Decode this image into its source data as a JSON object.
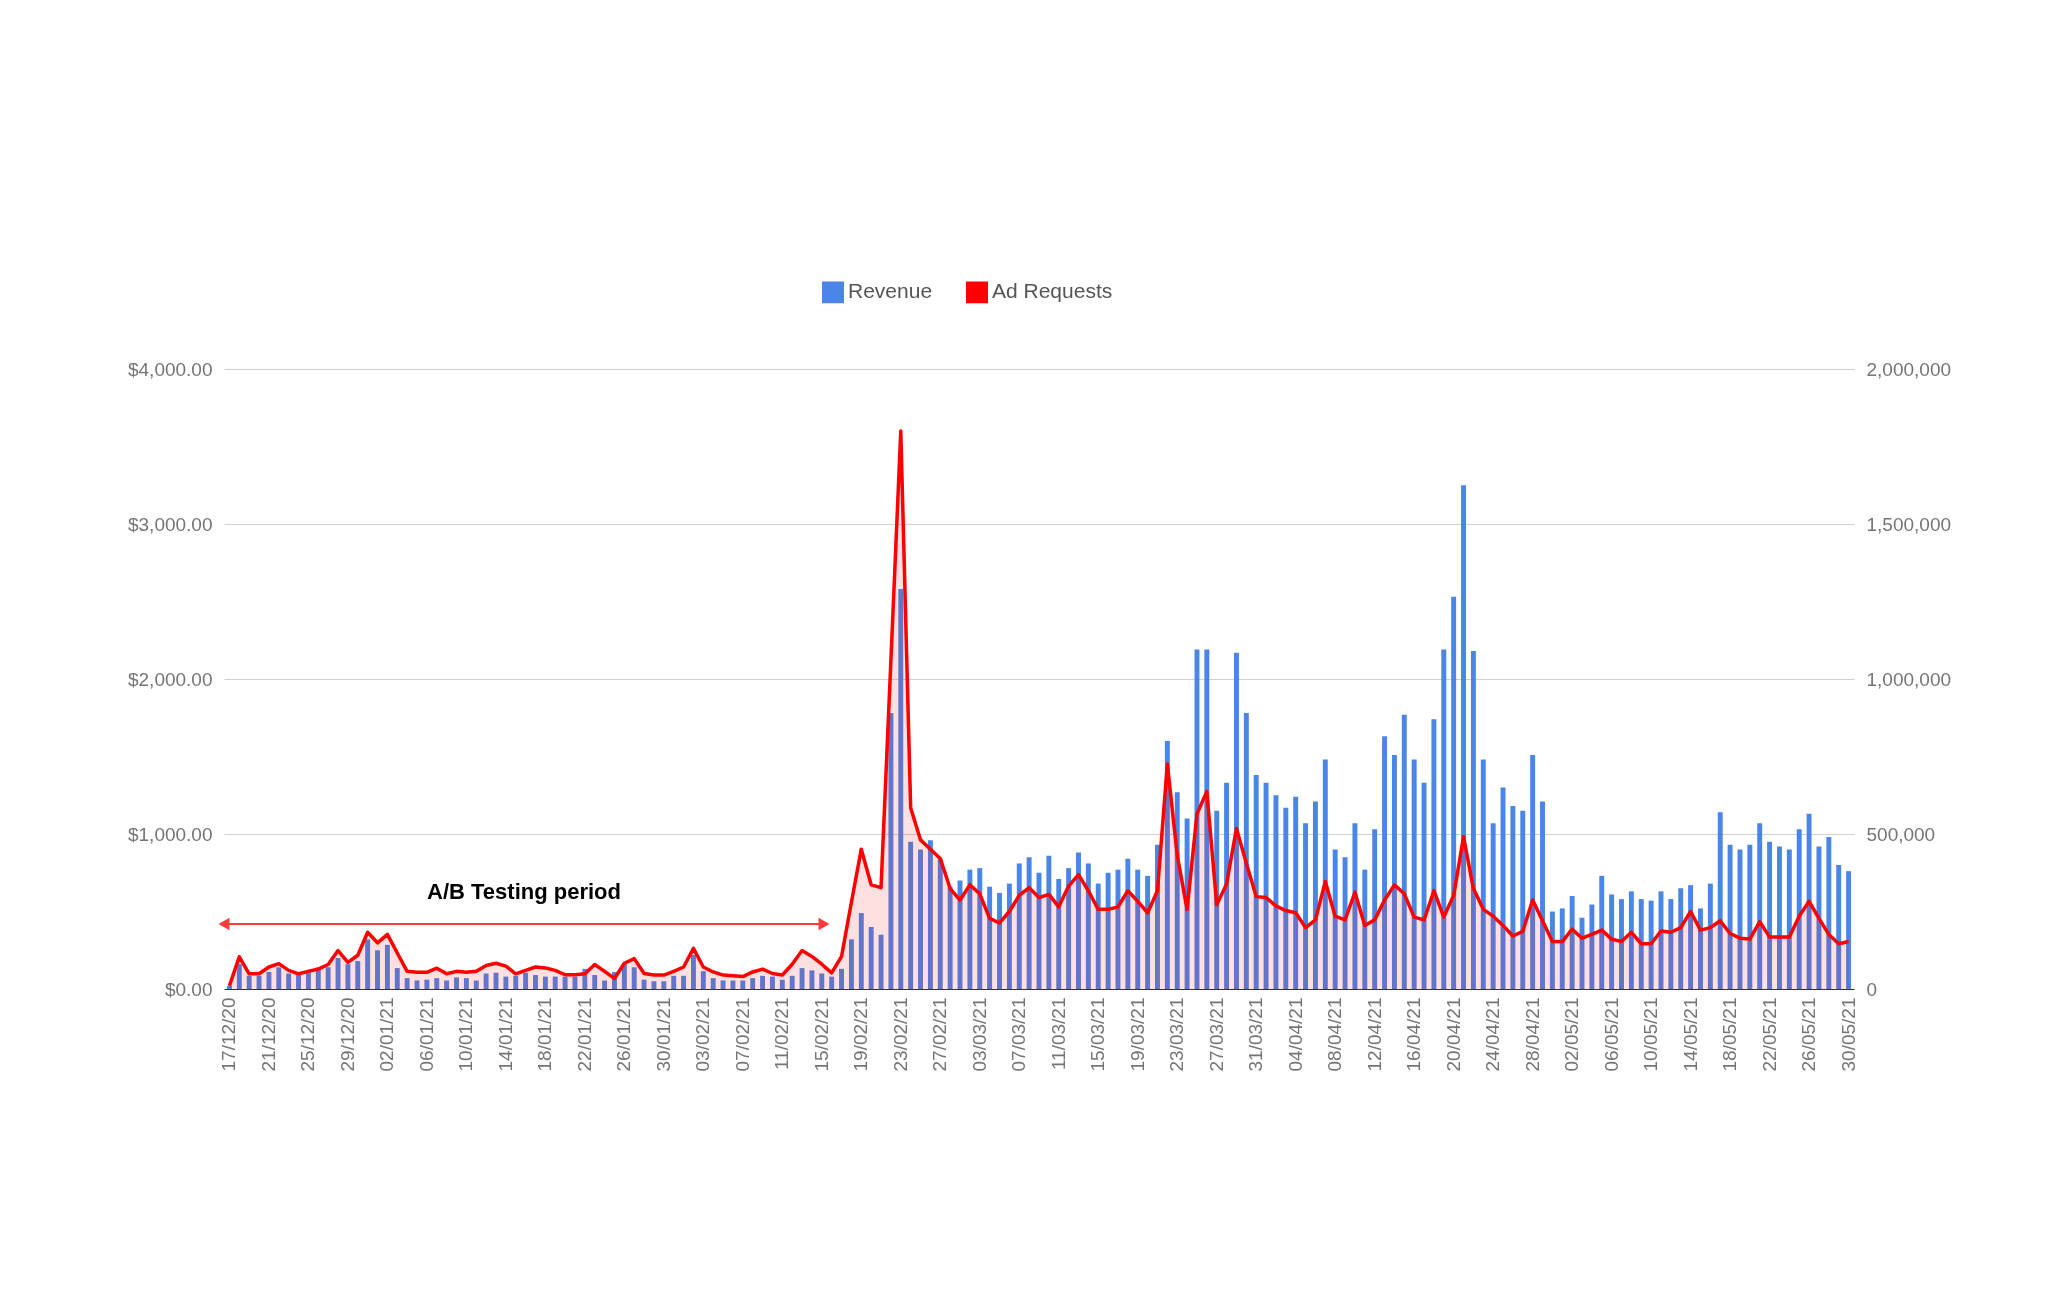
{
  "chart_data": {
    "type": "bar",
    "categories": [
      "17/12/20",
      null,
      null,
      null,
      "21/12/20",
      null,
      null,
      null,
      "25/12/20",
      null,
      null,
      null,
      "29/12/20",
      null,
      null,
      null,
      "02/01/21",
      null,
      null,
      null,
      "06/01/21",
      null,
      null,
      null,
      "10/01/21",
      null,
      null,
      null,
      "14/01/21",
      null,
      null,
      null,
      "18/01/21",
      null,
      null,
      null,
      "22/01/21",
      null,
      null,
      null,
      "26/01/21",
      null,
      null,
      null,
      "30/01/21",
      null,
      null,
      null,
      "03/02/21",
      null,
      null,
      null,
      "07/02/21",
      null,
      null,
      null,
      "11/02/21",
      null,
      null,
      null,
      "15/02/21",
      null,
      null,
      null,
      "19/02/21",
      null,
      null,
      null,
      "23/02/21",
      null,
      null,
      null,
      "27/02/21",
      null,
      null,
      null,
      "03/03/21",
      null,
      null,
      null,
      "07/03/21",
      null,
      null,
      null,
      "11/03/21",
      null,
      null,
      null,
      "15/03/21",
      null,
      null,
      null,
      "19/03/21",
      null,
      null,
      null,
      "23/03/21",
      null,
      null,
      null,
      "27/03/21",
      null,
      null,
      null,
      "31/03/21",
      null,
      null,
      null,
      "04/04/21",
      null,
      null,
      null,
      "08/04/21",
      null,
      null,
      null,
      "12/04/21",
      null,
      null,
      null,
      "16/04/21",
      null,
      null,
      null,
      "20/04/21",
      null,
      null,
      null,
      "24/04/21",
      null,
      null,
      null,
      "28/04/21",
      null,
      null,
      null,
      "02/05/21",
      null,
      null,
      null,
      "06/05/21",
      null,
      null,
      null,
      "10/05/21",
      null,
      null,
      null,
      "14/05/21",
      null,
      null,
      null,
      "18/05/21",
      null,
      null,
      null,
      "22/05/21",
      null,
      null,
      null,
      "26/05/21",
      null,
      null,
      null,
      "30/05/21"
    ],
    "series": [
      {
        "name": "Revenue",
        "color": "#4a86e8",
        "values": [
          20,
          160,
          85,
          85,
          110,
          140,
          100,
          90,
          105,
          140,
          140,
          200,
          160,
          180,
          320,
          250,
          285,
          135,
          70,
          55,
          60,
          70,
          55,
          75,
          70,
          55,
          100,
          105,
          80,
          85,
          105,
          90,
          80,
          80,
          80,
          80,
          130,
          90,
          55,
          110,
          160,
          140,
          60,
          50,
          50,
          85,
          85,
          220,
          115,
          70,
          55,
          55,
          55,
          70,
          85,
          80,
          60,
          85,
          135,
          120,
          100,
          80,
          130,
          320,
          490,
          400,
          350,
          1780,
          2580,
          950,
          900,
          960,
          840,
          660,
          700,
          770,
          780,
          660,
          620,
          680,
          810,
          850,
          750,
          860,
          710,
          780,
          880,
          810,
          680,
          750,
          770,
          840,
          770,
          730,
          930,
          1600,
          1270,
          1100,
          2190,
          2190,
          1150,
          1330,
          2170,
          1780,
          1380,
          1330,
          1250,
          1170,
          1240,
          1070,
          1210,
          1480,
          900,
          850,
          1070,
          770,
          1030,
          1630,
          1510,
          1770,
          1480,
          1330,
          1740,
          2190,
          2530,
          3250,
          2180,
          1480,
          1070,
          1300,
          1180,
          1150,
          1510,
          1210,
          500,
          520,
          600,
          460,
          545,
          730,
          610,
          580,
          630,
          580,
          570,
          630,
          580,
          650,
          670,
          520,
          680,
          1140,
          930,
          900,
          930,
          1070,
          950,
          920,
          900,
          1030,
          1130,
          920,
          980,
          800,
          760
        ]
      },
      {
        "name": "Ad Requests",
        "type": "area",
        "axis": "y2",
        "color": "#ff0000",
        "values": [
          10000,
          104000,
          49000,
          49000,
          71000,
          82000,
          60000,
          49000,
          57000,
          64000,
          79000,
          124000,
          86000,
          109000,
          183000,
          149000,
          176000,
          116000,
          57000,
          54000,
          54000,
          67000,
          49000,
          57000,
          54000,
          57000,
          76000,
          83000,
          74000,
          49000,
          60000,
          71000,
          68000,
          60000,
          46000,
          46000,
          49000,
          79000,
          57000,
          34000,
          83000,
          98000,
          50000,
          45000,
          45000,
          57000,
          71000,
          131000,
          71000,
          55000,
          45000,
          43000,
          40000,
          55000,
          64000,
          50000,
          45000,
          80000,
          124000,
          105000,
          80000,
          52000,
          105000,
          280000,
          451000,
          336000,
          327000,
          1060000,
          1800000,
          585000,
          481000,
          451000,
          421000,
          324000,
          287000,
          336000,
          307000,
          228000,
          213000,
          250000,
          302000,
          327000,
          295000,
          305000,
          265000,
          332000,
          369000,
          317000,
          257000,
          257000,
          265000,
          317000,
          283000,
          246000,
          317000,
          726000,
          432000,
          257000,
          565000,
          637000,
          272000,
          339000,
          518000,
          406000,
          298000,
          295000,
          268000,
          253000,
          246000,
          198000,
          223000,
          347000,
          235000,
          223000,
          312000,
          205000,
          223000,
          287000,
          336000,
          307000,
          232000,
          223000,
          317000,
          232000,
          302000,
          491000,
          324000,
          257000,
          235000,
          205000,
          171000,
          186000,
          287000,
          220000,
          153000,
          153000,
          193000,
          164000,
          176000,
          190000,
          161000,
          153000,
          183000,
          146000,
          146000,
          187000,
          183000,
          198000,
          250000,
          190000,
          198000,
          220000,
          179000,
          164000,
          161000,
          217000,
          168000,
          168000,
          168000,
          235000,
          283000,
          228000,
          176000,
          146000,
          153000
        ]
      }
    ],
    "ylim": [
      0,
      4000
    ],
    "yticks": [
      {
        "value": 0,
        "label": "$0.00"
      },
      {
        "value": 1000,
        "label": "$1,000.00"
      },
      {
        "value": 2000,
        "label": "$2,000.00"
      },
      {
        "value": 3000,
        "label": "$3,000.00"
      },
      {
        "value": 4000,
        "label": "$4,000.00"
      }
    ],
    "y2lim": [
      0,
      2000000
    ],
    "y2ticks": [
      0,
      {
        "value": 500000,
        "label": "500,000"
      },
      {
        "value": 1000000,
        "label": "1,000,000"
      },
      {
        "value": 1500000,
        "label": "1,500,000"
      },
      {
        "value": 2000000,
        "label": "2,000,000"
      }
    ],
    "annotations": [
      "A/B Testing period"
    ],
    "grid": "y",
    "legend": "top"
  }
}
